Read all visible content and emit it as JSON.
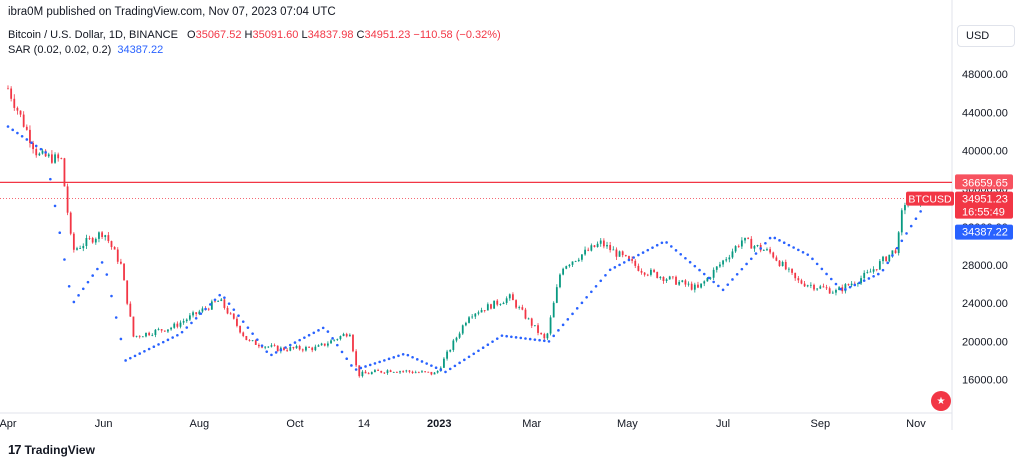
{
  "header": {
    "publisher": "ibra0M published on TradingView.com, Nov 07, 2023 07:04 UTC",
    "symbol": "Bitcoin / U.S. Dollar, 1D, BINANCE",
    "open_label": "O",
    "open": "35067.52",
    "high_label": "H",
    "high": "35091.60",
    "low_label": "L",
    "low": "34837.98",
    "close_label": "C",
    "close": "34951.23",
    "change": "−110.58 (−0.32%)",
    "sar_label": "SAR (0.02, 0.02, 0.2)",
    "sar_value": "34387.22"
  },
  "currency": "USD",
  "logo": {
    "text": "TradingView",
    "mark": "17"
  },
  "colors": {
    "up": "#089981",
    "down": "#f23645",
    "sar": "#2962ff",
    "hline": "#f23645"
  },
  "chart_data": {
    "type": "line",
    "series": [
      {
        "name": "BTCUSD",
        "x": [
          "2022-04-01",
          "2022-04-20",
          "2022-05-05",
          "2022-05-12",
          "2022-06-01",
          "2022-06-12",
          "2022-06-20",
          "2022-07-15",
          "2022-08-14",
          "2022-09-01",
          "2022-09-20",
          "2022-10-15",
          "2022-11-05",
          "2022-11-10",
          "2022-12-01",
          "2022-12-30",
          "2023-01-20",
          "2023-02-15",
          "2023-03-10",
          "2023-03-20",
          "2023-04-14",
          "2023-05-10",
          "2023-06-15",
          "2023-07-13",
          "2023-08-01",
          "2023-08-17",
          "2023-09-11",
          "2023-10-01",
          "2023-10-20",
          "2023-10-24",
          "2023-11-07"
        ],
        "close": [
          46500,
          39500,
          39000,
          29500,
          31500,
          28000,
          20500,
          21500,
          24300,
          20000,
          19200,
          19300,
          21000,
          16500,
          17000,
          16600,
          22800,
          24600,
          20000,
          27800,
          30300,
          27500,
          25500,
          30600,
          29200,
          26300,
          25200,
          27000,
          29800,
          34500,
          34951.23
        ]
      },
      {
        "name": "SAR (0.02, 0.02, 0.2)",
        "x": [
          "2022-04-01",
          "2022-04-25",
          "2022-05-12",
          "2022-06-01",
          "2022-06-15",
          "2022-07-20",
          "2022-08-15",
          "2022-09-15",
          "2022-10-20",
          "2022-11-08",
          "2022-12-10",
          "2023-01-05",
          "2023-02-10",
          "2023-03-12",
          "2023-04-20",
          "2023-05-25",
          "2023-07-01",
          "2023-08-01",
          "2023-08-25",
          "2023-09-15",
          "2023-10-10",
          "2023-11-07"
        ],
        "values": [
          42500,
          39800,
          23900,
          28500,
          18000,
          20800,
          25000,
          18500,
          21500,
          17000,
          18700,
          16800,
          20600,
          20000,
          27500,
          30500,
          25400,
          31000,
          29000,
          25300,
          27200,
          34387.22
        ]
      }
    ],
    "y_ticks": [
      "48000.00",
      "44000.00",
      "40000.00",
      "36000.00",
      "32000.00",
      "28000.00",
      "24000.00",
      "20000.00",
      "16000.00"
    ],
    "x_ticks": [
      "Apr",
      "Jun",
      "Aug",
      "Oct",
      "14",
      "2023",
      "Mar",
      "May",
      "Jul",
      "Sep",
      "Nov"
    ],
    "x_tick_dates": [
      "2022-04-01",
      "2022-06-01",
      "2022-08-01",
      "2022-10-01",
      "2022-11-14",
      "2023-01-01",
      "2023-03-01",
      "2023-05-01",
      "2023-07-01",
      "2023-09-01",
      "2023-11-01"
    ],
    "x_range": [
      "2022-04-01",
      "2023-11-24"
    ],
    "y_range": [
      12600,
      50000
    ],
    "horizontal_lines": [
      {
        "value": 36659.65,
        "label": "36659.65"
      }
    ],
    "price_labels": [
      {
        "text": "BTCUSD",
        "value": 34951.23
      },
      {
        "text": "34951.23",
        "value": 34951.23
      },
      {
        "text": "16:55:49",
        "value": 34951.23
      },
      {
        "text": "34387.22",
        "value": 34387.22
      }
    ],
    "grid": false,
    "legend": "top-left"
  }
}
